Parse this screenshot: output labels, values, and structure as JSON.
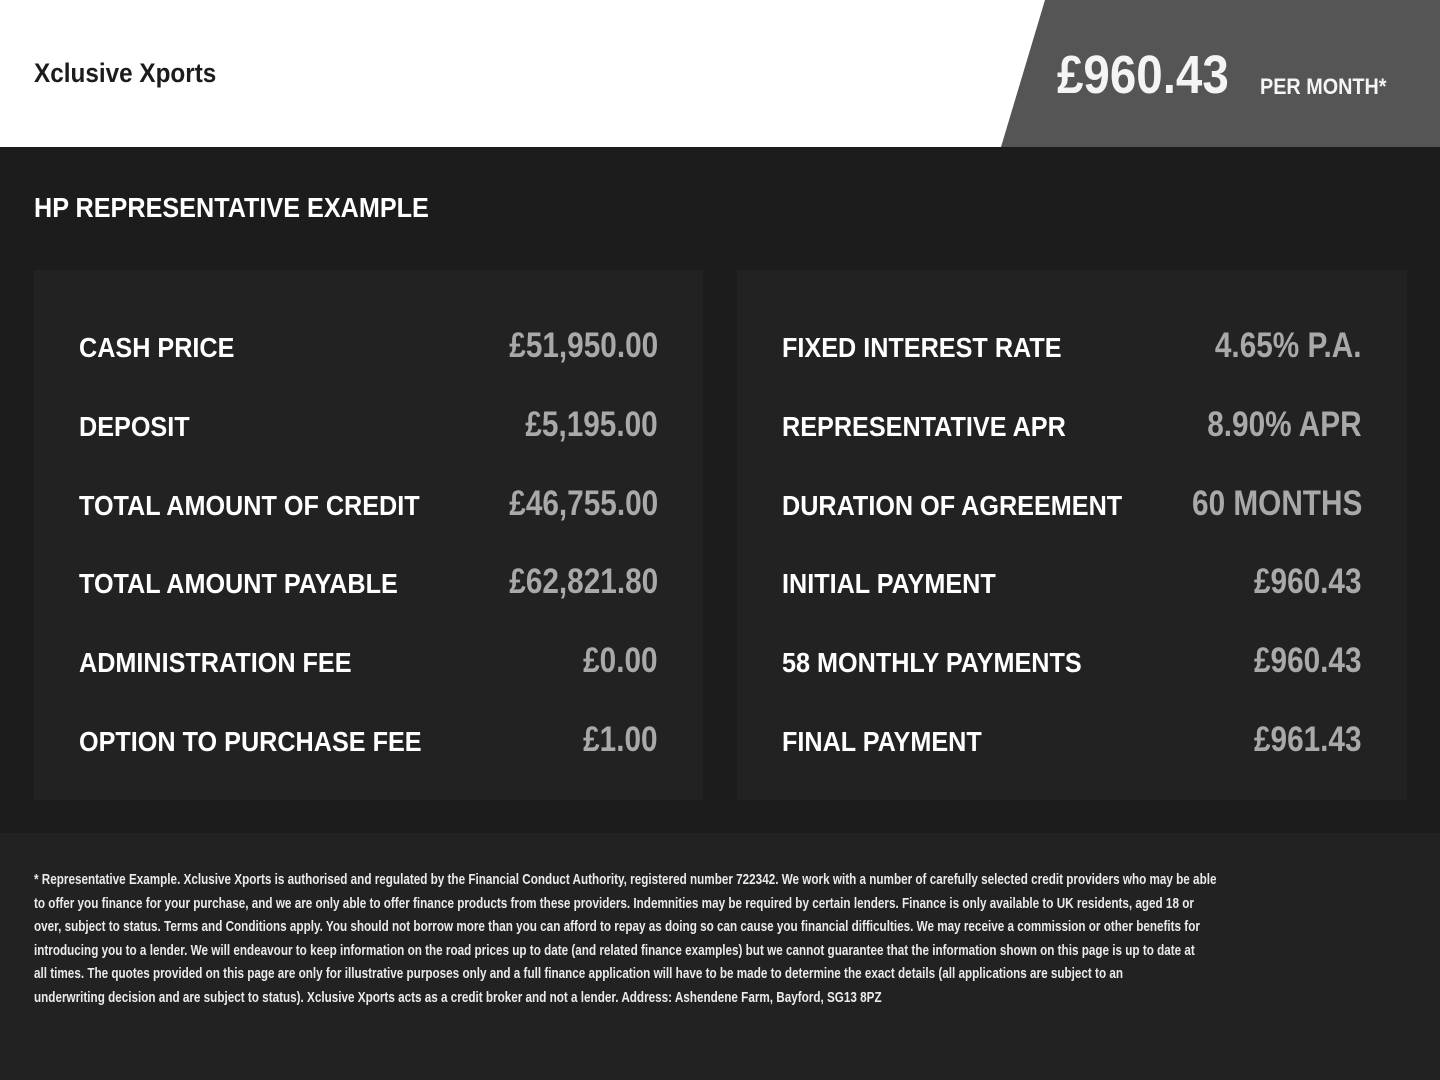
{
  "header": {
    "brand": "Xclusive Xports",
    "price": "£960.43",
    "price_suffix": "PER MONTH*"
  },
  "colors": {
    "header_bg": "#ffffff",
    "price_box": "#555555",
    "body_bg": "#1c1c1c",
    "panel_bg": "#222222",
    "value_text": "#a9a9a9"
  },
  "heading": "HP REPRESENTATIVE EXAMPLE",
  "left_rows": [
    {
      "label": "CASH PRICE",
      "value": "£51,950.00"
    },
    {
      "label": "DEPOSIT",
      "value": "£5,195.00"
    },
    {
      "label": "TOTAL AMOUNT OF CREDIT",
      "value": "£46,755.00"
    },
    {
      "label": "TOTAL AMOUNT PAYABLE",
      "value": "£62,821.80"
    },
    {
      "label": "ADMINISTRATION FEE",
      "value": "£0.00"
    },
    {
      "label": "OPTION TO PURCHASE FEE",
      "value": "£1.00"
    }
  ],
  "right_rows": [
    {
      "label": "FIXED INTEREST RATE",
      "value": "4.65% P.A."
    },
    {
      "label": "REPRESENTATIVE APR",
      "value": "8.90% APR"
    },
    {
      "label": "DURATION OF AGREEMENT",
      "value": "60 MONTHS"
    },
    {
      "label": "INITIAL PAYMENT",
      "value": "£960.43"
    },
    {
      "label": "58 MONTHLY PAYMENTS",
      "value": "£960.43"
    },
    {
      "label": "FINAL PAYMENT",
      "value": "£961.43"
    }
  ],
  "disclaimer": [
    "* Representative Example. Xclusive Xports is authorised and regulated by the Financial Conduct Authority, registered number 722342. We work with a number of carefully selected credit providers who may be able",
    "to offer you finance for your purchase, and we are only able to offer finance products from these providers. Indemnities may be required by certain lenders. Finance is only available to UK residents, aged 18 or",
    "over, subject to status. Terms and Conditions apply. You should not borrow more than you can afford to repay as doing so can cause you financial difficulties. We may receive a commission or other benefits for",
    "introducing you to a lender. We will endeavour to keep information on the road prices up to date (and related finance examples) but we cannot guarantee that the information shown on this page is up to date at",
    "all times. The quotes provided on this page are only for illustrative purposes only and a full finance application will have to be made to determine the exact details (all applications are subject to an",
    "underwriting decision and are subject to status). Xclusive Xports acts as a credit broker and not a lender. Address: Ashendene Farm, Bayford, SG13 8PZ"
  ]
}
